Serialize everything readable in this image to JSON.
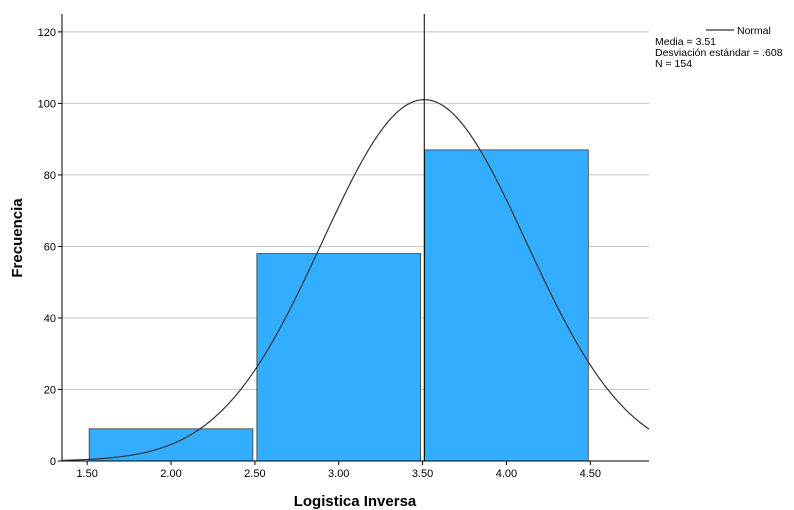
{
  "chart_data": {
    "type": "bar",
    "subtype": "histogram",
    "xlabel": "Logistica Inversa",
    "ylabel": "Frecuencia",
    "xlim": [
      1.35,
      4.85
    ],
    "ylim": [
      0,
      125
    ],
    "x_ticks": [
      "1.50",
      "2.00",
      "2.50",
      "3.00",
      "3.50",
      "4.00",
      "4.50"
    ],
    "y_ticks": [
      "0",
      "20",
      "40",
      "60",
      "80",
      "100",
      "120"
    ],
    "grid": "horizontal",
    "bins": [
      {
        "from": 1.5,
        "to": 2.5,
        "value": 9
      },
      {
        "from": 2.5,
        "to": 3.5,
        "value": 58
      },
      {
        "from": 3.5,
        "to": 4.5,
        "value": 87
      }
    ],
    "bar_color": "#33adff",
    "bar_edge_color": "#3a3a3a",
    "normal_curve": {
      "label": "Normal",
      "mean": 3.51,
      "sd": 0.608,
      "n": 154,
      "bin_width": 1.0,
      "color": "#333333"
    },
    "stats": {
      "mean_text": "Media = 3.51",
      "sd_text": "Desviación estándar = .608",
      "n_text": "N = 154"
    },
    "mean_line": 3.51,
    "legend_position": "top-right"
  }
}
